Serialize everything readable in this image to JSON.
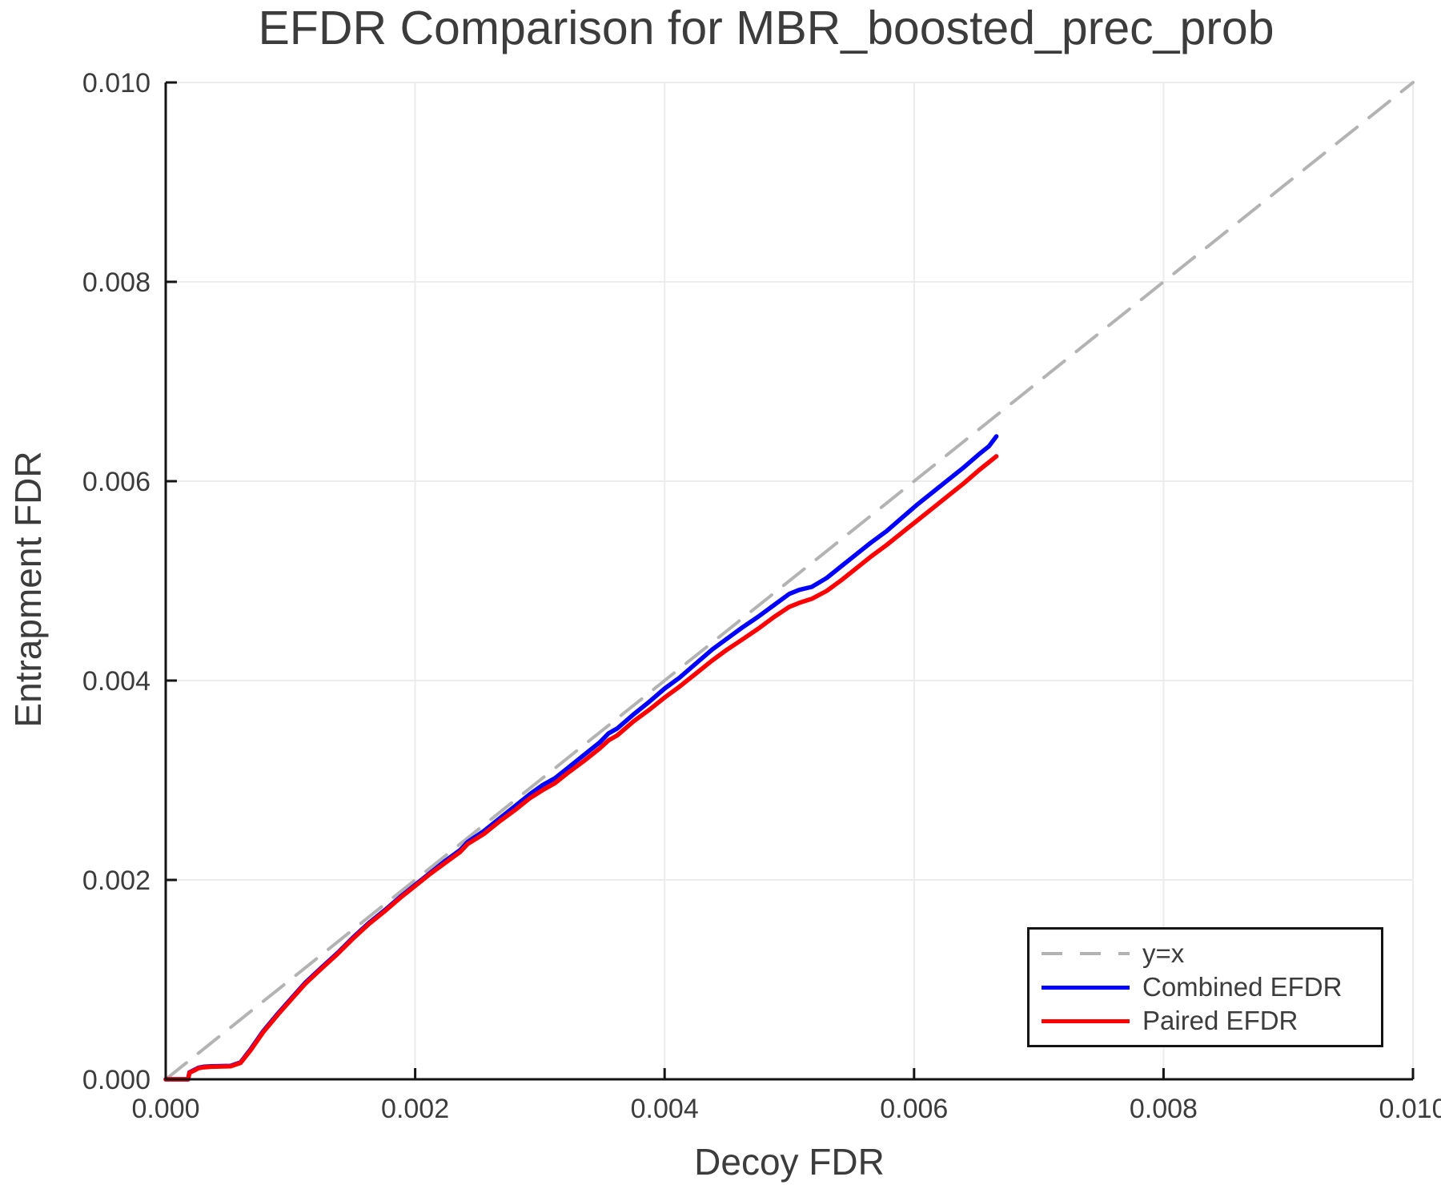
{
  "chart_data": {
    "type": "line",
    "title": "EFDR Comparison for MBR_boosted_prec_prob",
    "xlabel": "Decoy FDR",
    "ylabel": "Entrapment FDR",
    "xlim": [
      0.0,
      0.01
    ],
    "ylim": [
      0.0,
      0.01
    ],
    "xticks": [
      "0.000",
      "0.002",
      "0.004",
      "0.006",
      "0.008",
      "0.010"
    ],
    "yticks": [
      "0.000",
      "0.002",
      "0.004",
      "0.006",
      "0.008",
      "0.010"
    ],
    "grid": true,
    "legend_position": "bottom-right",
    "colors": {
      "grid": "#ececec",
      "axis": "#141414",
      "text": "#3c3c3c",
      "identity": "#b3b3b3",
      "combined": "#0000ff",
      "paired": "#ff0000"
    },
    "series": [
      {
        "name": "y=x",
        "color": "#b3b3b3",
        "style": "dashed",
        "points": [
          [
            0.0,
            0.0
          ],
          [
            0.01,
            0.01
          ]
        ]
      },
      {
        "name": "Combined EFDR",
        "color": "#0000ff",
        "style": "solid",
        "points": [
          [
            0.0,
            0.0
          ],
          [
            0.00018,
            0.0
          ],
          [
            0.00019,
            7e-05
          ],
          [
            0.00024,
            0.0001
          ],
          [
            0.00026,
            0.000115
          ],
          [
            0.0003,
            0.000125
          ],
          [
            0.00036,
            0.00013
          ],
          [
            0.00052,
            0.000135
          ],
          [
            0.0006,
            0.00017
          ],
          [
            0.00068,
            0.0003
          ],
          [
            0.00078,
            0.00048
          ],
          [
            0.0009,
            0.00066
          ],
          [
            0.00102,
            0.00083
          ],
          [
            0.00112,
            0.00097
          ],
          [
            0.00124,
            0.00111
          ],
          [
            0.00138,
            0.00127
          ],
          [
            0.0015,
            0.00142
          ],
          [
            0.00163,
            0.00157
          ],
          [
            0.00176,
            0.0017
          ],
          [
            0.00188,
            0.00183
          ],
          [
            0.002,
            0.00195
          ],
          [
            0.00212,
            0.00207
          ],
          [
            0.00224,
            0.00219
          ],
          [
            0.00236,
            0.0023
          ],
          [
            0.00242,
            0.00238
          ],
          [
            0.00255,
            0.00249
          ],
          [
            0.00268,
            0.00262
          ],
          [
            0.0028,
            0.00274
          ],
          [
            0.00292,
            0.00286
          ],
          [
            0.00302,
            0.00295
          ],
          [
            0.00312,
            0.00302
          ],
          [
            0.00322,
            0.00312
          ],
          [
            0.00335,
            0.00325
          ],
          [
            0.00348,
            0.00338
          ],
          [
            0.00355,
            0.00347
          ],
          [
            0.00362,
            0.00352
          ],
          [
            0.00375,
            0.00366
          ],
          [
            0.00388,
            0.00379
          ],
          [
            0.004,
            0.00392
          ],
          [
            0.00412,
            0.00403
          ],
          [
            0.00425,
            0.00417
          ],
          [
            0.00438,
            0.00431
          ],
          [
            0.0045,
            0.00442
          ],
          [
            0.00462,
            0.00453
          ],
          [
            0.00475,
            0.00464
          ],
          [
            0.00488,
            0.00476
          ],
          [
            0.005,
            0.00487
          ],
          [
            0.00508,
            0.00491
          ],
          [
            0.00518,
            0.00494
          ],
          [
            0.0053,
            0.00503
          ],
          [
            0.00542,
            0.00515
          ],
          [
            0.00555,
            0.00528
          ],
          [
            0.00565,
            0.00538
          ],
          [
            0.00578,
            0.0055
          ],
          [
            0.0059,
            0.00563
          ],
          [
            0.00602,
            0.00576
          ],
          [
            0.00615,
            0.00589
          ],
          [
            0.00628,
            0.00602
          ],
          [
            0.0064,
            0.00614
          ],
          [
            0.00652,
            0.00627
          ],
          [
            0.0066,
            0.00635
          ],
          [
            0.00666,
            0.00645
          ]
        ]
      },
      {
        "name": "Paired EFDR",
        "color": "#ff0000",
        "style": "solid",
        "points": [
          [
            0.0,
            0.0
          ],
          [
            0.00018,
            0.0
          ],
          [
            0.00019,
            6.5e-05
          ],
          [
            0.00024,
            9.5e-05
          ],
          [
            0.00026,
            0.00011
          ],
          [
            0.0003,
            0.00012
          ],
          [
            0.00036,
            0.000125
          ],
          [
            0.00052,
            0.00013
          ],
          [
            0.0006,
            0.000165
          ],
          [
            0.00068,
            0.00029
          ],
          [
            0.00078,
            0.00047
          ],
          [
            0.0009,
            0.00065
          ],
          [
            0.00102,
            0.00082
          ],
          [
            0.00112,
            0.00096
          ],
          [
            0.00124,
            0.0011
          ],
          [
            0.00138,
            0.00126
          ],
          [
            0.0015,
            0.00141
          ],
          [
            0.00163,
            0.00156
          ],
          [
            0.00176,
            0.00169
          ],
          [
            0.00188,
            0.00182
          ],
          [
            0.002,
            0.00194
          ],
          [
            0.00212,
            0.00206
          ],
          [
            0.00224,
            0.00217
          ],
          [
            0.00236,
            0.00228
          ],
          [
            0.00242,
            0.00236
          ],
          [
            0.00255,
            0.00246
          ],
          [
            0.00268,
            0.00259
          ],
          [
            0.0028,
            0.0027
          ],
          [
            0.00292,
            0.00282
          ],
          [
            0.00302,
            0.0029
          ],
          [
            0.00312,
            0.00297
          ],
          [
            0.00322,
            0.00307
          ],
          [
            0.00335,
            0.00319
          ],
          [
            0.00348,
            0.00332
          ],
          [
            0.00355,
            0.0034
          ],
          [
            0.00362,
            0.00345
          ],
          [
            0.00375,
            0.00359
          ],
          [
            0.00388,
            0.00371
          ],
          [
            0.004,
            0.00383
          ],
          [
            0.00412,
            0.00394
          ],
          [
            0.00425,
            0.00407
          ],
          [
            0.00438,
            0.0042
          ],
          [
            0.0045,
            0.00431
          ],
          [
            0.00462,
            0.00441
          ],
          [
            0.00475,
            0.00452
          ],
          [
            0.00488,
            0.00464
          ],
          [
            0.005,
            0.00474
          ],
          [
            0.00508,
            0.00478
          ],
          [
            0.00518,
            0.00482
          ],
          [
            0.0053,
            0.0049
          ],
          [
            0.00542,
            0.00501
          ],
          [
            0.00555,
            0.00514
          ],
          [
            0.00565,
            0.00524
          ],
          [
            0.00578,
            0.00536
          ],
          [
            0.0059,
            0.00548
          ],
          [
            0.00602,
            0.0056
          ],
          [
            0.00615,
            0.00573
          ],
          [
            0.00628,
            0.00586
          ],
          [
            0.0064,
            0.00598
          ],
          [
            0.00652,
            0.00611
          ],
          [
            0.0066,
            0.00619
          ],
          [
            0.00666,
            0.00625
          ]
        ]
      }
    ]
  }
}
